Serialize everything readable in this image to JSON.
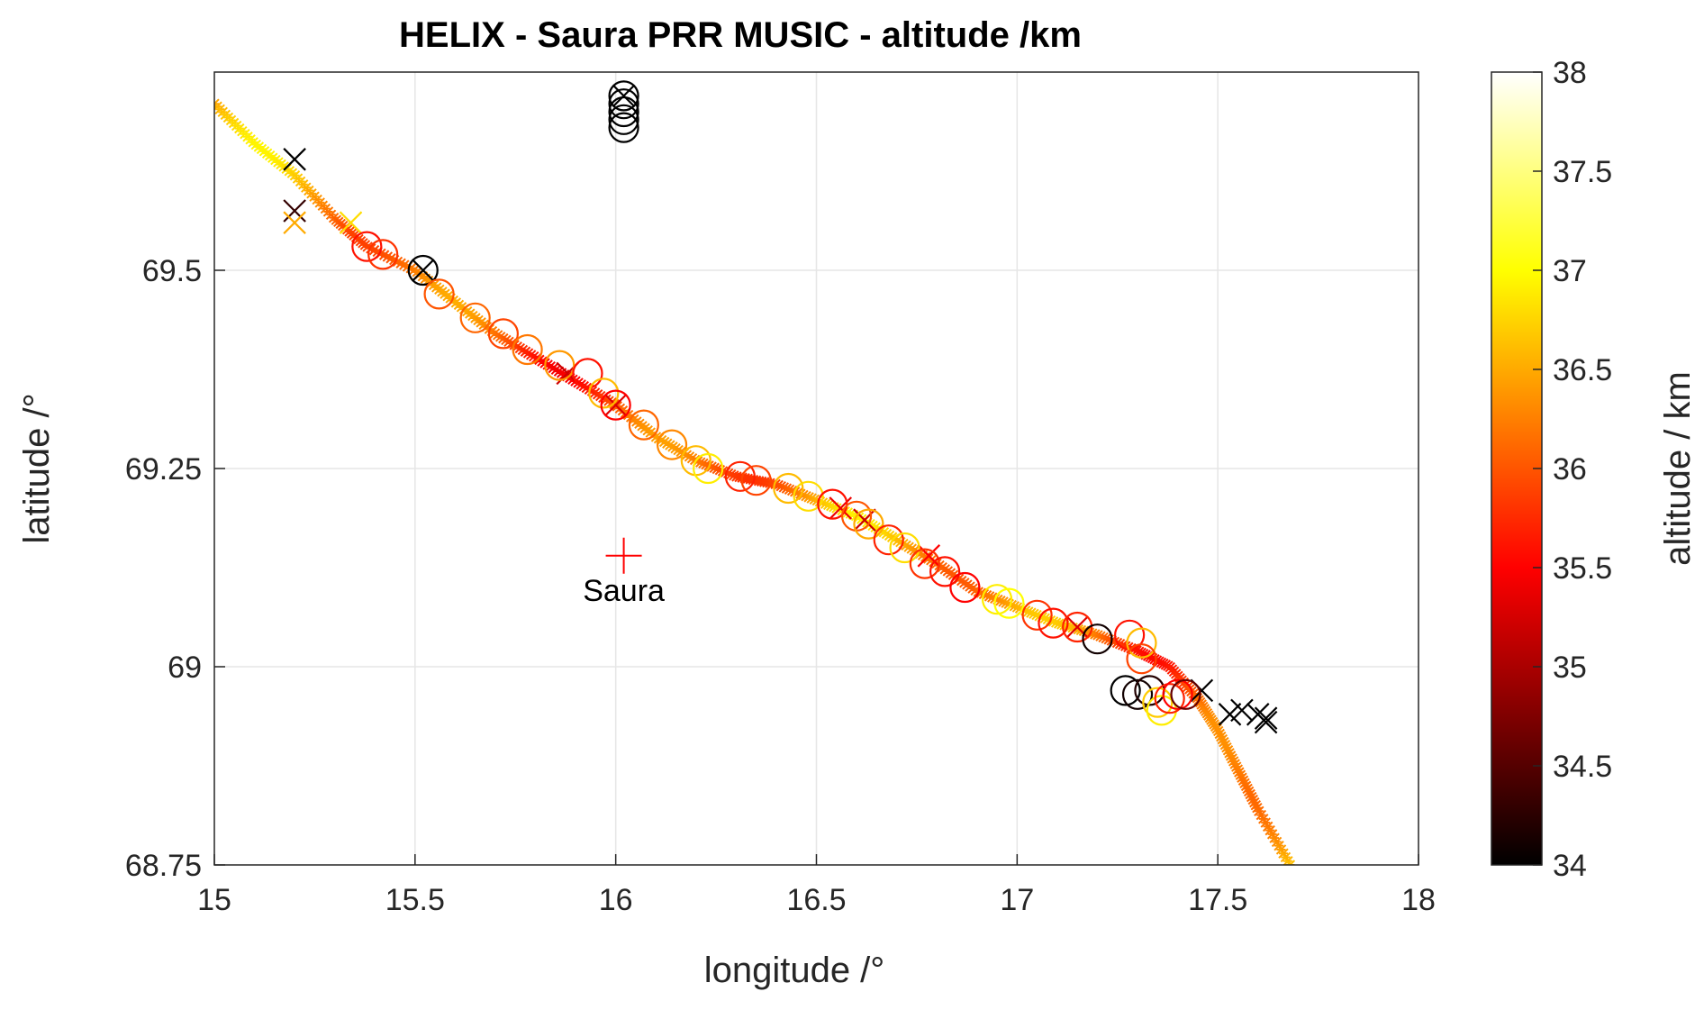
{
  "chart_data": {
    "type": "scatter",
    "title": "HELIX - Saura PRR MUSIC - altitude /km",
    "xlabel": "longitude /°",
    "ylabel": "latitude /°",
    "xlim": [
      15,
      18
    ],
    "ylim": [
      68.75,
      69.75
    ],
    "xticks": [
      15,
      15.5,
      16,
      16.5,
      17,
      17.5,
      18
    ],
    "xtick_labels": [
      "15",
      "15.5",
      "16",
      "16.5",
      "17",
      "17.5",
      "18"
    ],
    "yticks": [
      68.75,
      69,
      69.25,
      69.5
    ],
    "ytick_labels": [
      "68.75",
      "69",
      "69.25",
      "69.5"
    ],
    "grid": true,
    "colorbar": {
      "label": "altitude / km",
      "colormap": "hot",
      "range": [
        34,
        38
      ],
      "ticks": [
        34,
        34.5,
        35,
        35.5,
        36,
        36.5,
        37,
        37.5,
        38
      ],
      "tick_labels": [
        "34",
        "34.5",
        "35",
        "35.5",
        "36",
        "36.5",
        "37",
        "37.5",
        "38"
      ],
      "colors": [
        "#000000",
        "#ff0000",
        "#ffff00",
        "#ffffff"
      ]
    },
    "annotation": {
      "text": "Saura",
      "lon": 16.02,
      "lat": 69.14,
      "marker": "+",
      "color": "#ff0000"
    },
    "track": [
      {
        "lon": 15.0,
        "lat": 69.71
      },
      {
        "lon": 15.1,
        "lat": 69.66
      },
      {
        "lon": 15.2,
        "lat": 69.62
      },
      {
        "lon": 15.3,
        "lat": 69.565
      },
      {
        "lon": 15.38,
        "lat": 69.53
      },
      {
        "lon": 15.5,
        "lat": 69.5
      },
      {
        "lon": 15.6,
        "lat": 69.46
      },
      {
        "lon": 15.7,
        "lat": 69.42
      },
      {
        "lon": 15.8,
        "lat": 69.39
      },
      {
        "lon": 15.9,
        "lat": 69.36
      },
      {
        "lon": 16.0,
        "lat": 69.33
      },
      {
        "lon": 16.1,
        "lat": 69.29
      },
      {
        "lon": 16.2,
        "lat": 69.26
      },
      {
        "lon": 16.3,
        "lat": 69.24
      },
      {
        "lon": 16.4,
        "lat": 69.23
      },
      {
        "lon": 16.5,
        "lat": 69.21
      },
      {
        "lon": 16.6,
        "lat": 69.19
      },
      {
        "lon": 16.7,
        "lat": 69.16
      },
      {
        "lon": 16.8,
        "lat": 69.13
      },
      {
        "lon": 16.9,
        "lat": 69.095
      },
      {
        "lon": 17.0,
        "lat": 69.075
      },
      {
        "lon": 17.1,
        "lat": 69.055
      },
      {
        "lon": 17.2,
        "lat": 69.04
      },
      {
        "lon": 17.3,
        "lat": 69.02
      },
      {
        "lon": 17.38,
        "lat": 69.0
      },
      {
        "lon": 17.45,
        "lat": 68.96
      },
      {
        "lon": 17.5,
        "lat": 68.92
      },
      {
        "lon": 17.55,
        "lat": 68.87
      },
      {
        "lon": 17.6,
        "lat": 68.82
      },
      {
        "lon": 17.68,
        "lat": 68.75
      }
    ],
    "circles": [
      {
        "lon": 15.38,
        "lat": 69.53,
        "alt": 35.6
      },
      {
        "lon": 15.42,
        "lat": 69.52,
        "alt": 35.8
      },
      {
        "lon": 15.52,
        "lat": 69.5,
        "alt": 34.0
      },
      {
        "lon": 15.56,
        "lat": 69.47,
        "alt": 36.0
      },
      {
        "lon": 15.65,
        "lat": 69.44,
        "alt": 36.1
      },
      {
        "lon": 15.72,
        "lat": 69.42,
        "alt": 35.9
      },
      {
        "lon": 15.78,
        "lat": 69.4,
        "alt": 36.2
      },
      {
        "lon": 15.86,
        "lat": 69.38,
        "alt": 36.4
      },
      {
        "lon": 15.93,
        "lat": 69.37,
        "alt": 35.6
      },
      {
        "lon": 15.97,
        "lat": 69.345,
        "alt": 36.6
      },
      {
        "lon": 16.0,
        "lat": 69.33,
        "alt": 35.5
      },
      {
        "lon": 16.07,
        "lat": 69.305,
        "alt": 36.1
      },
      {
        "lon": 16.14,
        "lat": 69.28,
        "alt": 36.3
      },
      {
        "lon": 16.2,
        "lat": 69.26,
        "alt": 36.6
      },
      {
        "lon": 16.23,
        "lat": 69.25,
        "alt": 36.9
      },
      {
        "lon": 16.31,
        "lat": 69.24,
        "alt": 35.7
      },
      {
        "lon": 16.35,
        "lat": 69.235,
        "alt": 35.9
      },
      {
        "lon": 16.43,
        "lat": 69.225,
        "alt": 36.6
      },
      {
        "lon": 16.48,
        "lat": 69.215,
        "alt": 36.8
      },
      {
        "lon": 16.54,
        "lat": 69.205,
        "alt": 35.6
      },
      {
        "lon": 16.6,
        "lat": 69.19,
        "alt": 36.0
      },
      {
        "lon": 16.63,
        "lat": 69.18,
        "alt": 36.5
      },
      {
        "lon": 16.68,
        "lat": 69.16,
        "alt": 35.7
      },
      {
        "lon": 16.72,
        "lat": 69.15,
        "alt": 36.8
      },
      {
        "lon": 16.77,
        "lat": 69.13,
        "alt": 35.8
      },
      {
        "lon": 16.82,
        "lat": 69.12,
        "alt": 35.6
      },
      {
        "lon": 16.87,
        "lat": 69.1,
        "alt": 35.5
      },
      {
        "lon": 16.95,
        "lat": 69.085,
        "alt": 36.9
      },
      {
        "lon": 16.98,
        "lat": 69.08,
        "alt": 37.0
      },
      {
        "lon": 17.05,
        "lat": 69.065,
        "alt": 35.8
      },
      {
        "lon": 17.09,
        "lat": 69.055,
        "alt": 35.6
      },
      {
        "lon": 17.15,
        "lat": 69.05,
        "alt": 35.7
      },
      {
        "lon": 17.2,
        "lat": 69.035,
        "alt": 34.1
      },
      {
        "lon": 17.28,
        "lat": 69.04,
        "alt": 35.6
      },
      {
        "lon": 17.31,
        "lat": 69.03,
        "alt": 36.6
      },
      {
        "lon": 17.31,
        "lat": 69.01,
        "alt": 35.9
      },
      {
        "lon": 17.27,
        "lat": 68.97,
        "alt": 34.0
      },
      {
        "lon": 17.3,
        "lat": 68.965,
        "alt": 34.1
      },
      {
        "lon": 17.33,
        "lat": 68.97,
        "alt": 34.2
      },
      {
        "lon": 17.35,
        "lat": 68.955,
        "alt": 36.7
      },
      {
        "lon": 17.36,
        "lat": 68.945,
        "alt": 36.9
      },
      {
        "lon": 17.38,
        "lat": 68.96,
        "alt": 35.7
      },
      {
        "lon": 17.4,
        "lat": 68.965,
        "alt": 35.5
      },
      {
        "lon": 17.42,
        "lat": 68.965,
        "alt": 34.6
      },
      {
        "lon": 16.02,
        "lat": 69.72,
        "alt": 34.0
      },
      {
        "lon": 16.02,
        "lat": 69.71,
        "alt": 34.0
      },
      {
        "lon": 16.02,
        "lat": 69.7,
        "alt": 34.0
      },
      {
        "lon": 16.02,
        "lat": 69.69,
        "alt": 34.0
      },
      {
        "lon": 16.02,
        "lat": 69.68,
        "alt": 34.0
      }
    ],
    "crosses": [
      {
        "lon": 15.2,
        "lat": 69.64,
        "alt": 34.0
      },
      {
        "lon": 15.2,
        "lat": 69.575,
        "alt": 34.3
      },
      {
        "lon": 15.2,
        "lat": 69.56,
        "alt": 36.5
      },
      {
        "lon": 15.34,
        "lat": 69.56,
        "alt": 36.8
      },
      {
        "lon": 15.52,
        "lat": 69.5,
        "alt": 34.0
      },
      {
        "lon": 15.88,
        "lat": 69.37,
        "alt": 35.2
      },
      {
        "lon": 16.0,
        "lat": 69.33,
        "alt": 35.3
      },
      {
        "lon": 16.56,
        "lat": 69.2,
        "alt": 35.4
      },
      {
        "lon": 16.62,
        "lat": 69.185,
        "alt": 35.2
      },
      {
        "lon": 16.78,
        "lat": 69.14,
        "alt": 35.5
      },
      {
        "lon": 17.15,
        "lat": 69.05,
        "alt": 35.3
      },
      {
        "lon": 17.46,
        "lat": 68.97,
        "alt": 34.0
      },
      {
        "lon": 17.53,
        "lat": 68.94,
        "alt": 34.0
      },
      {
        "lon": 17.56,
        "lat": 68.945,
        "alt": 34.0
      },
      {
        "lon": 17.6,
        "lat": 68.94,
        "alt": 34.0
      },
      {
        "lon": 17.62,
        "lat": 68.935,
        "alt": 34.0
      },
      {
        "lon": 17.62,
        "lat": 68.93,
        "alt": 34.0
      },
      {
        "lon": 16.02,
        "lat": 69.72,
        "alt": 34.0
      }
    ]
  }
}
